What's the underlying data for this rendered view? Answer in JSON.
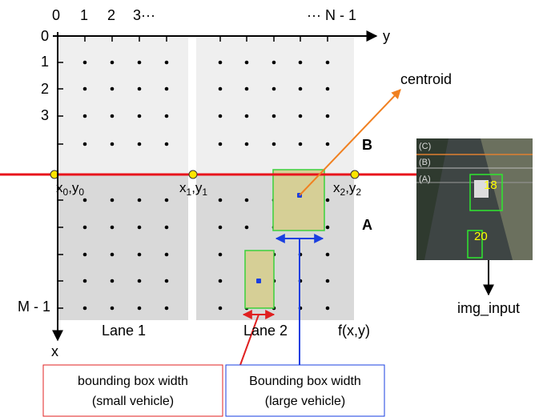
{
  "axes": {
    "top_ticks": [
      "0",
      "1",
      "2",
      "3···",
      "··· N - 1"
    ],
    "y_label": "y",
    "left_ticks": [
      "0",
      "1",
      "2",
      "3",
      "M - 1"
    ],
    "x_label": "x"
  },
  "regions": {
    "upper": "B",
    "lower": "A"
  },
  "centroid_label": "centroid",
  "points": [
    {
      "parts": [
        "x",
        "0",
        ",y",
        "0"
      ]
    },
    {
      "parts": [
        "x",
        "1",
        ",y",
        "1"
      ]
    },
    {
      "parts": [
        "x",
        "2",
        ",y",
        "2"
      ]
    }
  ],
  "lanes": [
    "Lane 1",
    "Lane 2"
  ],
  "function_label": "f(x,y)",
  "input": {
    "label": "img_input",
    "zones": [
      "(C)",
      "(B)",
      "(A)"
    ],
    "ids": [
      "18",
      "20"
    ]
  },
  "notes": [
    {
      "lines": [
        "bounding box width",
        "(small vehicle)"
      ]
    },
    {
      "lines": [
        "Bounding box width",
        "(large vehicle)"
      ]
    }
  ]
}
